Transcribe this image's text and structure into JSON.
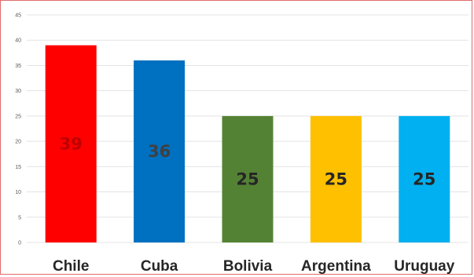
{
  "chart_data": {
    "type": "bar",
    "categories": [
      "Chile",
      "Cuba",
      "Bolivia",
      "Argentina",
      "Uruguay"
    ],
    "values": [
      39,
      36,
      25,
      25,
      25
    ],
    "data_labels": [
      "39",
      "36",
      "25",
      "25",
      "25"
    ],
    "colors": [
      "#ff0000",
      "#0070c0",
      "#548235",
      "#ffc000",
      "#00b0f0"
    ],
    "label_colors": [
      "#c00000",
      "#404040",
      "#262626",
      "#262626",
      "#262626"
    ],
    "ylim": [
      0,
      45
    ],
    "yticks": [
      0,
      5,
      10,
      15,
      20,
      25,
      30,
      35,
      40,
      45
    ],
    "ytick_labels": [
      "0",
      "5",
      "10",
      "15",
      "20",
      "25",
      "30",
      "35",
      "40",
      "45"
    ],
    "grid": true,
    "legend": "none"
  }
}
